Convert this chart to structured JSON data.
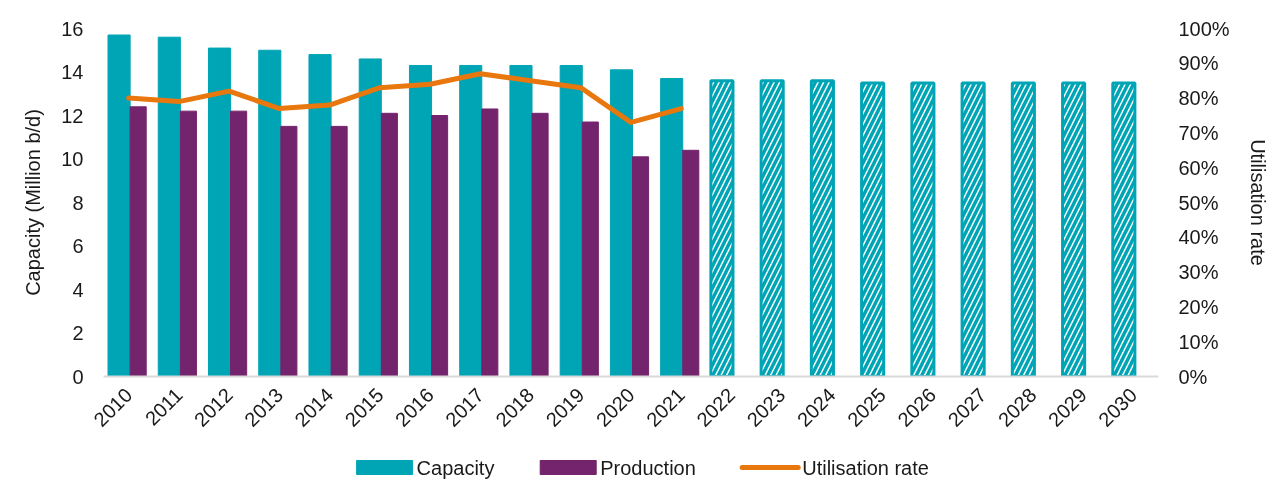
{
  "chart_data": {
    "type": "bar",
    "categories": [
      "2010",
      "2011",
      "2012",
      "2013",
      "2014",
      "2015",
      "2016",
      "2017",
      "2018",
      "2019",
      "2020",
      "2021",
      "2022",
      "2023",
      "2024",
      "2025",
      "2026",
      "2027",
      "2028",
      "2029",
      "2030"
    ],
    "series": [
      {
        "name": "Capacity",
        "color": "#00a5b5",
        "values": [
          15.7,
          15.6,
          15.1,
          15.0,
          14.8,
          14.6,
          14.3,
          14.3,
          14.3,
          14.3,
          14.1,
          13.7,
          13.6,
          13.6,
          13.6,
          13.5,
          13.5,
          13.5,
          13.5,
          13.5,
          13.5
        ],
        "colors": [
          "#00a5b5",
          "#00a5b5",
          "#00a5b5",
          "#00a5b5",
          "#00a5b5",
          "#00a5b5",
          "#00a5b5",
          "#00a5b5",
          "#00a5b5",
          "#00a5b5",
          "#00a5b5",
          "#00a5b5",
          "#ffffff",
          "#ffffff",
          "#ffffff",
          "#ffffff",
          "#ffffff",
          "#ffffff",
          "#ffffff",
          "#ffffff",
          "#ffffff"
        ]
      },
      {
        "name": "Production",
        "color": "#74246c",
        "values": [
          12.4,
          12.2,
          12.2,
          11.5,
          11.5,
          12.1,
          12.0,
          12.3,
          12.1,
          11.7,
          10.1,
          10.4,
          null,
          null,
          null,
          null,
          null,
          null,
          null,
          null,
          null
        ]
      },
      {
        "name": "Utilisation rate",
        "type": "line",
        "axis": "y2",
        "color": "#e8770e",
        "values": [
          80,
          79,
          82,
          77,
          78,
          83,
          84,
          87,
          85,
          83,
          73,
          77,
          null,
          null,
          null,
          null,
          null,
          null,
          null,
          null,
          null
        ]
      }
    ],
    "ylabel": "Capacity (Million b/d)",
    "y2label": "Utilisation rate",
    "ylim": [
      0,
      16
    ],
    "yticks": [
      0,
      2,
      4,
      6,
      8,
      10,
      12,
      14,
      16
    ],
    "y2lim": [
      0,
      100
    ],
    "y2ticks": [
      {
        "value": 0,
        "label": "0%"
      },
      {
        "value": 10,
        "label": "10%"
      },
      {
        "value": 20,
        "label": "20%"
      },
      {
        "value": 30,
        "label": "30%"
      },
      {
        "value": 40,
        "label": "40%"
      },
      {
        "value": 50,
        "label": "50%"
      },
      {
        "value": 60,
        "label": "60%"
      },
      {
        "value": 70,
        "label": "70%"
      },
      {
        "value": 80,
        "label": "80%"
      },
      {
        "value": 90,
        "label": "90%"
      },
      {
        "value": 100,
        "label": "100%"
      }
    ],
    "legend": "bottom"
  }
}
